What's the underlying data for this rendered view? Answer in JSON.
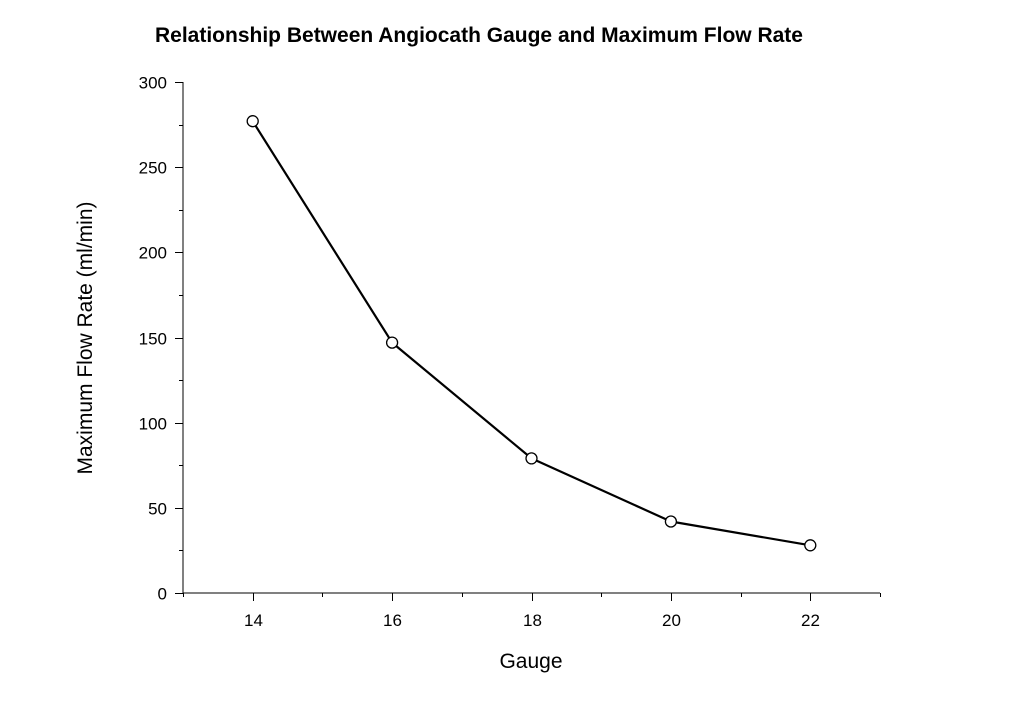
{
  "chart_data": {
    "type": "line",
    "title": "Relationship Between Angiocath Gauge and Maximum Flow Rate",
    "xlabel": "Gauge",
    "ylabel": "Maximum Flow Rate (ml/min)",
    "x": [
      14,
      16,
      18,
      20,
      22
    ],
    "series": [
      {
        "values": [
          277,
          147,
          79,
          42,
          28
        ]
      }
    ],
    "xlim": [
      13,
      23
    ],
    "ylim": [
      0,
      300
    ],
    "x_ticks": [
      14,
      16,
      18,
      20,
      22
    ],
    "y_ticks": [
      0,
      50,
      100,
      150,
      200,
      250,
      300
    ],
    "x_minor_ticks": [
      13,
      15,
      17,
      19,
      21,
      23
    ],
    "y_minor_ticks": [
      25,
      75,
      125,
      175,
      225,
      275
    ],
    "grid": false,
    "legend": "none",
    "marker": "open-circle",
    "colors": {
      "line": "#000000",
      "marker_fill": "#ffffff",
      "axis": "#000000",
      "background": "#ffffff"
    }
  }
}
